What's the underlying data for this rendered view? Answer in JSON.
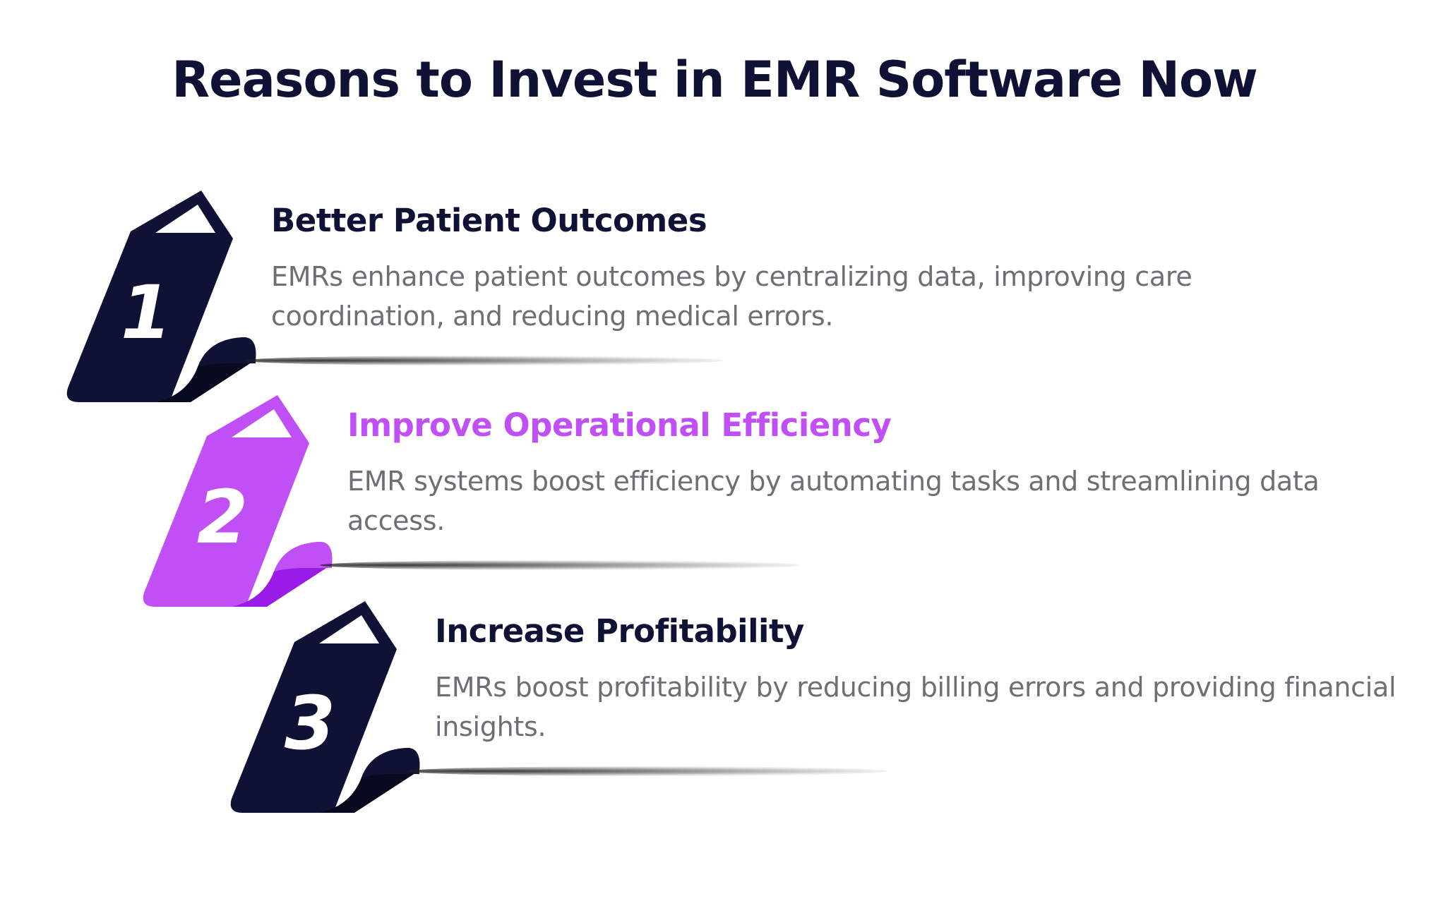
{
  "title": "Reasons to Invest in EMR Software Now",
  "colors": {
    "dark_navy": "#0f1235",
    "purple": "#c04ff5",
    "purple_dark": "#9a1ae8",
    "body_text": "#6e6e73"
  },
  "items": [
    {
      "number": "1",
      "heading": "Better Patient Outcomes",
      "text": "EMRs enhance patient outcomes by centralizing data, improving care coordination, and reducing medical errors.",
      "color": "dark_navy"
    },
    {
      "number": "2",
      "heading": "Improve Operational Efficiency",
      "text": "EMR systems boost efficiency by automating tasks and streamlining data access.",
      "color": "purple"
    },
    {
      "number": "3",
      "heading": "Increase Profitability",
      "text": "EMRs boost profitability by reducing billing errors and providing financial insights.",
      "color": "dark_navy"
    }
  ]
}
